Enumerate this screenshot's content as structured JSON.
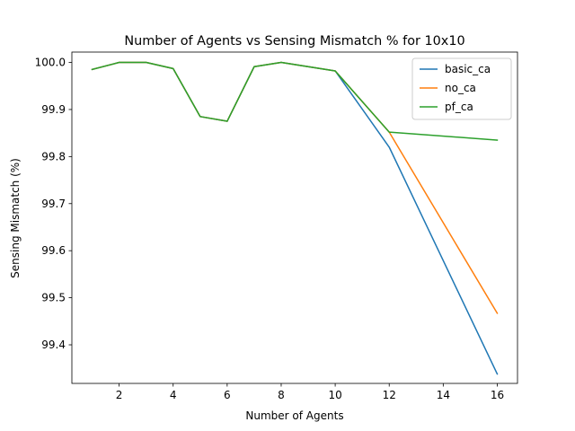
{
  "chart_data": {
    "type": "line",
    "title": "Number of Agents vs Sensing Mismatch % for 10x10",
    "xlabel": "Number of Agents",
    "ylabel": "Sensing Mismatch (%)",
    "xlim": [
      0.25,
      16.75
    ],
    "ylim": [
      99.318,
      100.022
    ],
    "xticks": [
      2,
      4,
      6,
      8,
      10,
      12,
      14,
      16
    ],
    "yticks": [
      99.4,
      99.5,
      99.6,
      99.7,
      99.8,
      99.9,
      100.0
    ],
    "xtick_labels": [
      "2",
      "4",
      "6",
      "8",
      "10",
      "12",
      "14",
      "16"
    ],
    "ytick_labels": [
      "99.4",
      "99.5",
      "99.6",
      "99.7",
      "99.8",
      "99.9",
      "100.0"
    ],
    "grid": false,
    "legend_position": "top-right",
    "series": [
      {
        "name": "basic_ca",
        "color": "#1f77b4",
        "x": [
          1,
          2,
          3,
          4,
          5,
          6,
          7,
          8,
          10,
          12,
          16
        ],
        "y": [
          99.985,
          100.0,
          100.0,
          99.987,
          99.885,
          99.875,
          99.991,
          100.0,
          99.982,
          99.82,
          99.338
        ]
      },
      {
        "name": "no_ca",
        "color": "#ff7f0e",
        "x": [
          1,
          2,
          3,
          4,
          5,
          6,
          7,
          8,
          10,
          12,
          16
        ],
        "y": [
          99.985,
          100.0,
          100.0,
          99.987,
          99.885,
          99.875,
          99.991,
          100.0,
          99.982,
          99.852,
          99.467
        ]
      },
      {
        "name": "pf_ca",
        "color": "#2ca02c",
        "x": [
          1,
          2,
          3,
          4,
          5,
          6,
          7,
          8,
          10,
          12,
          16
        ],
        "y": [
          99.985,
          100.0,
          100.0,
          99.987,
          99.885,
          99.875,
          99.991,
          100.0,
          99.982,
          99.852,
          99.835
        ]
      }
    ]
  }
}
